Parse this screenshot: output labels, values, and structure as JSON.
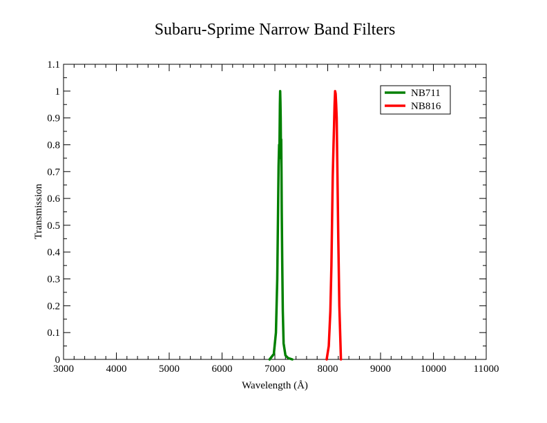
{
  "chart_data": {
    "type": "line",
    "title": "Subaru-Sprime Narrow Band Filters",
    "xlabel": "Wavelength (Å)",
    "ylabel": "Transmission",
    "xlim": [
      3000,
      11000
    ],
    "ylim": [
      0,
      1.1
    ],
    "x_ticks": [
      "3000",
      "4000",
      "5000",
      "6000",
      "7000",
      "8000",
      "9000",
      "10000",
      "11000"
    ],
    "y_ticks": [
      "0",
      "0.1",
      "0.2",
      "0.3",
      "0.4",
      "0.5",
      "0.6",
      "0.7",
      "0.8",
      "0.9",
      "1",
      "1.1"
    ],
    "grid": false,
    "legend_position": "top-right",
    "series": [
      {
        "name": "NB711",
        "color": "#008000",
        "x": [
          6900,
          6980,
          7020,
          7045,
          7060,
          7070,
          7080,
          7085,
          7090,
          7095,
          7100,
          7105,
          7110,
          7115,
          7120,
          7125,
          7130,
          7140,
          7150,
          7165,
          7200,
          7250,
          7330
        ],
        "y": [
          0,
          0.02,
          0.1,
          0.3,
          0.55,
          0.72,
          0.8,
          0.75,
          0.85,
          0.95,
          1.0,
          0.96,
          0.9,
          0.78,
          0.82,
          0.7,
          0.55,
          0.35,
          0.18,
          0.06,
          0.015,
          0.005,
          0
        ]
      },
      {
        "name": "NB816",
        "color": "#ff0000",
        "x": [
          7980,
          8020,
          8050,
          8070,
          8085,
          8095,
          8100,
          8110,
          8120,
          8130,
          8140,
          8150,
          8160,
          8170,
          8180,
          8190,
          8200,
          8220,
          8250
        ],
        "y": [
          0,
          0.05,
          0.18,
          0.35,
          0.55,
          0.68,
          0.72,
          0.8,
          0.87,
          0.95,
          1.0,
          0.99,
          0.95,
          0.9,
          0.75,
          0.6,
          0.45,
          0.2,
          0
        ]
      }
    ]
  }
}
